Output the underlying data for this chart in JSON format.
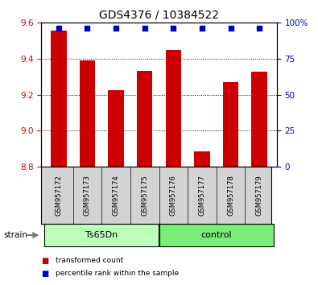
{
  "title": "GDS4376 / 10384522",
  "samples": [
    "GSM957172",
    "GSM957173",
    "GSM957174",
    "GSM957175",
    "GSM957176",
    "GSM957177",
    "GSM957178",
    "GSM957179"
  ],
  "bar_values": [
    9.555,
    9.39,
    9.225,
    9.335,
    9.45,
    8.885,
    9.27,
    9.33
  ],
  "bar_baseline": 8.8,
  "percentile_values": [
    96,
    96,
    96,
    96,
    96,
    96,
    96,
    96
  ],
  "ylim_left": [
    8.8,
    9.6
  ],
  "ylim_right": [
    0,
    100
  ],
  "yticks_left": [
    8.8,
    9.0,
    9.2,
    9.4,
    9.6
  ],
  "yticks_right": [
    0,
    25,
    50,
    75,
    100
  ],
  "ytick_labels_right": [
    "0",
    "25",
    "50",
    "75",
    "100%"
  ],
  "bar_color": "#cc0000",
  "percentile_color": "#0000cc",
  "groups": [
    {
      "label": "Ts65Dn",
      "start": 0,
      "end": 3,
      "color": "#aaffaa"
    },
    {
      "label": "control",
      "start": 4,
      "end": 7,
      "color": "#77ee77"
    }
  ],
  "strain_label": "strain",
  "legend": [
    {
      "label": "transformed count",
      "color": "#cc0000"
    },
    {
      "label": "percentile rank within the sample",
      "color": "#0000cc"
    }
  ],
  "figsize": [
    3.95,
    3.54
  ],
  "dpi": 100
}
